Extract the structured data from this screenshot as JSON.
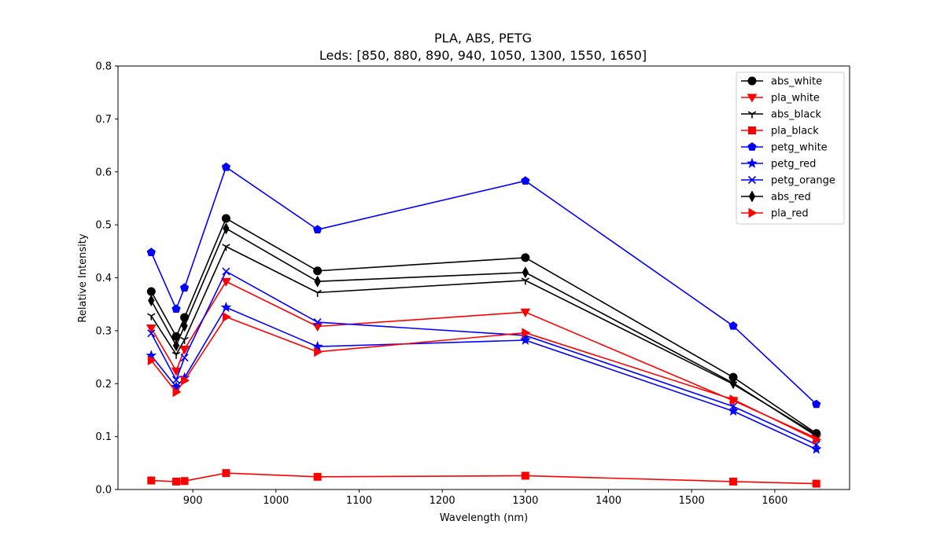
{
  "chart_data": {
    "type": "line",
    "title": "PLA, ABS, PETG",
    "subtitle": "Leds: [850, 880, 890, 940, 1050, 1300, 1550, 1650]",
    "xlabel": "Wavelength (nm)",
    "ylabel": "Relative Intensity",
    "xlim": [
      810,
      1690
    ],
    "ylim": [
      0,
      0.8
    ],
    "xticks": [
      900,
      1000,
      1100,
      1200,
      1300,
      1400,
      1500,
      1600
    ],
    "yticks": [
      0.0,
      0.1,
      0.2,
      0.3,
      0.4,
      0.5,
      0.6,
      0.7,
      0.8
    ],
    "grid": false,
    "legend_position": "top-right",
    "x": [
      850,
      880,
      890,
      940,
      1050,
      1300,
      1550,
      1650
    ],
    "series": [
      {
        "name": "abs_white",
        "color": "#000000",
        "marker": "circle",
        "values": [
          0.374,
          0.289,
          0.325,
          0.512,
          0.413,
          0.438,
          0.212,
          0.106
        ]
      },
      {
        "name": "pla_white",
        "color": "#ff0000",
        "marker": "triangle-down",
        "values": [
          0.305,
          0.224,
          0.265,
          0.393,
          0.308,
          0.335,
          0.168,
          0.097
        ]
      },
      {
        "name": "abs_black",
        "color": "#000000",
        "marker": "tri-down",
        "values": [
          0.328,
          0.255,
          0.283,
          0.459,
          0.372,
          0.395,
          0.199,
          0.104
        ]
      },
      {
        "name": "pla_black",
        "color": "#ff0000",
        "marker": "square",
        "values": [
          0.017,
          0.015,
          0.016,
          0.031,
          0.024,
          0.026,
          0.015,
          0.011
        ]
      },
      {
        "name": "petg_white",
        "color": "#0000ff",
        "marker": "pentagon",
        "values": [
          0.448,
          0.341,
          0.381,
          0.609,
          0.491,
          0.583,
          0.309,
          0.161
        ]
      },
      {
        "name": "petg_red",
        "color": "#0000ff",
        "marker": "star",
        "values": [
          0.253,
          0.194,
          0.211,
          0.344,
          0.27,
          0.282,
          0.148,
          0.076
        ]
      },
      {
        "name": "petg_orange",
        "color": "#0000ff",
        "marker": "x",
        "values": [
          0.295,
          0.207,
          0.249,
          0.412,
          0.316,
          0.291,
          0.157,
          0.085
        ]
      },
      {
        "name": "abs_red",
        "color": "#000000",
        "marker": "thin-diamond",
        "values": [
          0.357,
          0.272,
          0.309,
          0.493,
          0.393,
          0.41,
          0.201,
          0.101
        ]
      },
      {
        "name": "pla_red",
        "color": "#ff0000",
        "marker": "triangle-right",
        "values": [
          0.244,
          0.184,
          0.206,
          0.326,
          0.26,
          0.296,
          0.17,
          0.094
        ]
      }
    ]
  }
}
